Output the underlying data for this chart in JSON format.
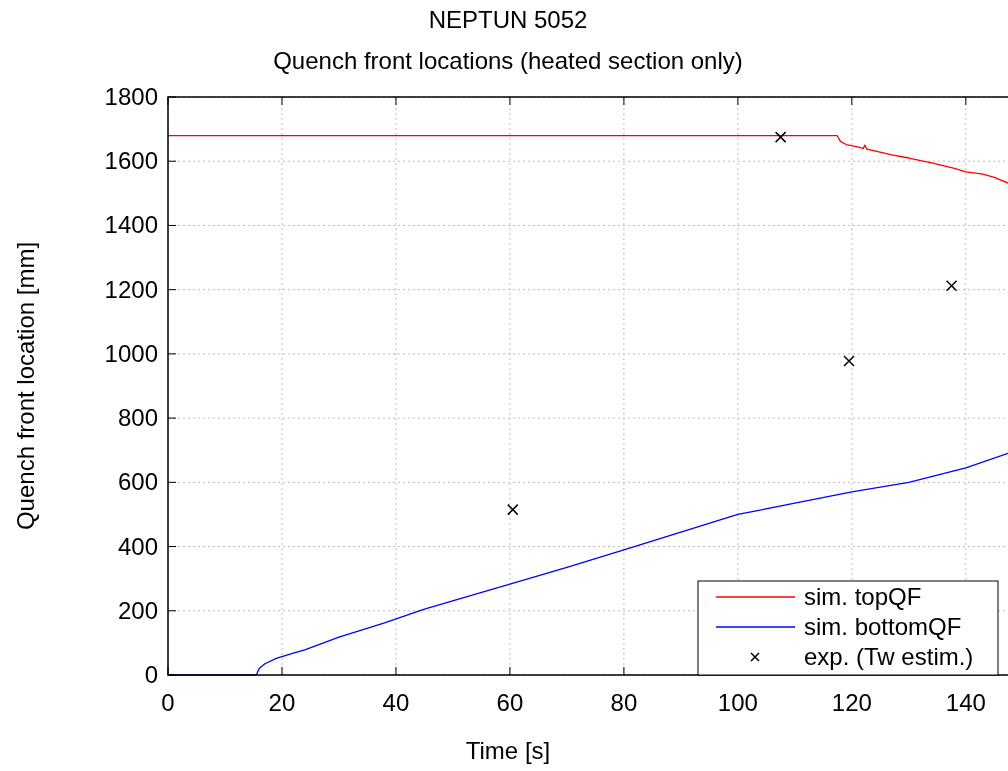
{
  "chart_data": {
    "type": "line",
    "title": "NEPTUN 5052",
    "subtitle": "Quench front locations (heated section only)",
    "xlabel": "Time [s]",
    "ylabel": "Quench front location [mm]",
    "xlim": [
      0,
      147.4
    ],
    "ylim": [
      0,
      1800
    ],
    "xticks": [
      0,
      20,
      40,
      60,
      80,
      100,
      120,
      140
    ],
    "yticks": [
      0,
      200,
      400,
      600,
      800,
      1000,
      1200,
      1400,
      1600,
      1800
    ],
    "grid": true,
    "legend": "bottom right",
    "series": [
      {
        "name": "sim. topQF",
        "color": "#ff0000",
        "x": [
          0,
          117.4,
          118,
          119,
          121,
          122,
          122.3,
          122.6,
          124,
          127,
          130,
          134,
          138,
          140,
          143,
          145,
          147.4
        ],
        "values": [
          1680,
          1680,
          1662,
          1652,
          1645,
          1640,
          1650,
          1638,
          1632,
          1620,
          1610,
          1595,
          1578,
          1567,
          1560,
          1550,
          1532
        ]
      },
      {
        "name": "sim. bottomQF",
        "color": "#0000ff",
        "x": [
          0,
          15.5,
          16,
          17,
          19,
          22,
          24,
          30,
          38,
          45,
          60,
          70,
          80,
          90,
          100,
          110,
          120,
          130,
          140,
          147.4
        ],
        "values": [
          0,
          0,
          20,
          35,
          52,
          68,
          78,
          118,
          162,
          205,
          283,
          335,
          390,
          445,
          500,
          535,
          570,
          600,
          645,
          690
        ]
      },
      {
        "name": "exp. (Tw estim.)",
        "color": "#000000",
        "type": "scatter",
        "marker": "cross",
        "x": [
          60.5,
          107.5,
          119.5,
          137.5
        ],
        "values": [
          515,
          1675,
          978,
          1212
        ]
      }
    ]
  }
}
